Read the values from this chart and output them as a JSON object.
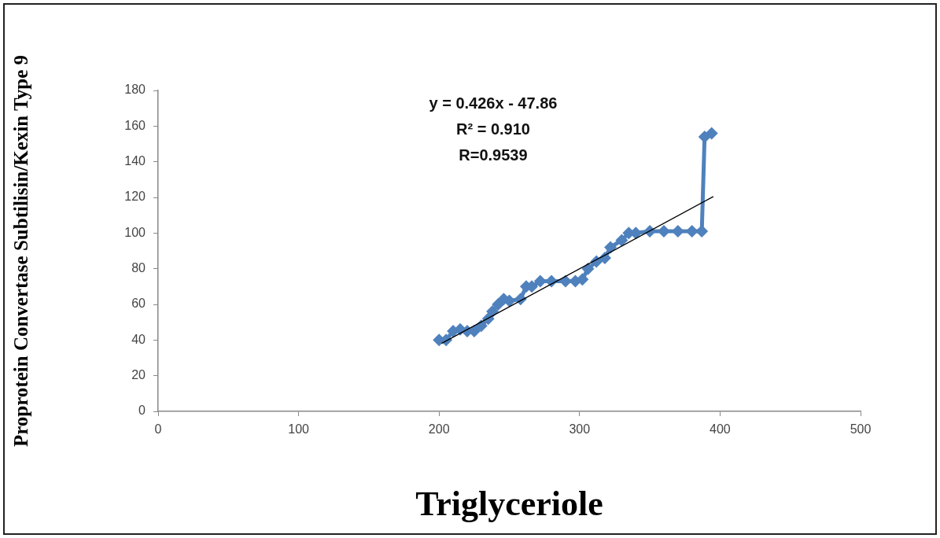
{
  "chart_data": {
    "type": "line",
    "xlabel": "Triglyceriole",
    "ylabel": "Proprotein Convertase Subtilisin/Kexin Type 9",
    "annotations": [
      "y = 0.426x - 47.86",
      "R² = 0.910",
      "R=0.9539"
    ],
    "xlim": [
      0,
      500
    ],
    "xticks": [
      0,
      100,
      200,
      300,
      400,
      500
    ],
    "ylim": [
      0,
      180
    ],
    "yticks": [
      0,
      20,
      40,
      60,
      80,
      100,
      120,
      140,
      160,
      180
    ],
    "grid": false,
    "legend": false,
    "marker": "diamond",
    "line_style": "solid",
    "series": [
      {
        "color": "#4f81bd",
        "x": [
          200,
          205,
          210,
          215,
          220,
          225,
          230,
          235,
          238,
          242,
          246,
          250,
          258,
          262,
          266,
          272,
          280,
          290,
          297,
          302,
          306,
          312,
          318,
          322,
          330,
          335,
          340,
          350,
          360,
          370,
          380,
          387,
          389,
          394
        ],
        "values": [
          40,
          40,
          45,
          46,
          45,
          45,
          48,
          52,
          56,
          60,
          63,
          62,
          63,
          70,
          70,
          73,
          73,
          73,
          73,
          74,
          80,
          84,
          86,
          92,
          96,
          100,
          100,
          101,
          101,
          101,
          101,
          101,
          154,
          156
        ]
      },
      {
        "type": "line",
        "color": "#000000",
        "marker": "none",
        "x": [
          202,
          395
        ],
        "values": [
          38.2,
          120.4
        ]
      }
    ]
  }
}
